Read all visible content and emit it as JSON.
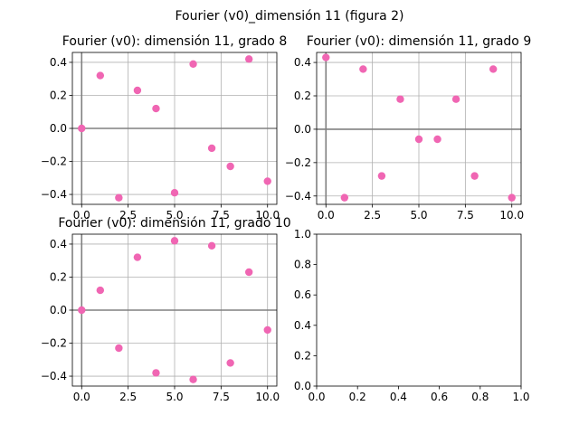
{
  "figure": {
    "suptitle": "Fourier (v0)_dimensión 11 (figura 2)"
  },
  "chart_data": [
    {
      "type": "scatter",
      "title": "Fourier (v0): dimensión 11, grado 8",
      "xlim": [
        -0.5,
        10.5
      ],
      "ylim": [
        -0.46,
        0.46
      ],
      "grid": true,
      "x_ticks": [
        0,
        2.5,
        5,
        7.5,
        10
      ],
      "x_tick_labels": [
        "0.0",
        "2.5",
        "5.0",
        "7.5",
        "10.0"
      ],
      "y_ticks": [
        -0.4,
        -0.2,
        0.0,
        0.2,
        0.4
      ],
      "y_tick_labels": [
        "−0.4",
        "−0.2",
        "0.0",
        "0.2",
        "0.4"
      ],
      "x": [
        0,
        1,
        2,
        3,
        4,
        5,
        6,
        7,
        8,
        9,
        10
      ],
      "y": [
        0.0,
        0.32,
        -0.42,
        0.23,
        0.12,
        -0.39,
        0.39,
        -0.12,
        -0.23,
        0.42,
        -0.32
      ],
      "marker_color": "#f066b3"
    },
    {
      "type": "scatter",
      "title": "Fourier (v0): dimensión 11, grado 9",
      "xlim": [
        -0.5,
        10.5
      ],
      "ylim": [
        -0.45,
        0.46
      ],
      "grid": true,
      "x_ticks": [
        0,
        2.5,
        5,
        7.5,
        10
      ],
      "x_tick_labels": [
        "0.0",
        "2.5",
        "5.0",
        "7.5",
        "10.0"
      ],
      "y_ticks": [
        -0.4,
        -0.2,
        0.0,
        0.2,
        0.4
      ],
      "y_tick_labels": [
        "−0.4",
        "−0.2",
        "0.0",
        "0.2",
        "0.4"
      ],
      "x": [
        0,
        1,
        2,
        3,
        4,
        5,
        6,
        7,
        8,
        9,
        10
      ],
      "y": [
        0.43,
        -0.41,
        0.36,
        -0.28,
        0.18,
        -0.06,
        -0.06,
        0.18,
        -0.28,
        0.36,
        -0.41
      ],
      "marker_color": "#f066b3"
    },
    {
      "type": "scatter",
      "title": "Fourier (v0): dimensión 11, grado 10",
      "xlim": [
        -0.5,
        10.5
      ],
      "ylim": [
        -0.46,
        0.46
      ],
      "grid": true,
      "x_ticks": [
        0,
        2.5,
        5,
        7.5,
        10
      ],
      "x_tick_labels": [
        "0.0",
        "2.5",
        "5.0",
        "7.5",
        "10.0"
      ],
      "y_ticks": [
        -0.4,
        -0.2,
        0.0,
        0.2,
        0.4
      ],
      "y_tick_labels": [
        "−0.4",
        "−0.2",
        "0.0",
        "0.2",
        "0.4"
      ],
      "x": [
        0,
        1,
        2,
        3,
        4,
        5,
        6,
        7,
        8,
        9,
        10
      ],
      "y": [
        0.0,
        0.12,
        -0.23,
        0.32,
        -0.38,
        0.42,
        -0.42,
        0.39,
        -0.32,
        0.23,
        -0.12
      ],
      "marker_color": "#f066b3"
    },
    {
      "type": "scatter",
      "title": "",
      "xlim": [
        0,
        1
      ],
      "ylim": [
        0,
        1
      ],
      "grid": false,
      "x_ticks": [
        0,
        0.2,
        0.4,
        0.6,
        0.8,
        1.0
      ],
      "x_tick_labels": [
        "0.0",
        "0.2",
        "0.4",
        "0.6",
        "0.8",
        "1.0"
      ],
      "y_ticks": [
        0,
        0.2,
        0.4,
        0.6,
        0.8,
        1.0
      ],
      "y_tick_labels": [
        "0.0",
        "0.2",
        "0.4",
        "0.6",
        "0.8",
        "1.0"
      ],
      "x": [],
      "y": []
    }
  ]
}
